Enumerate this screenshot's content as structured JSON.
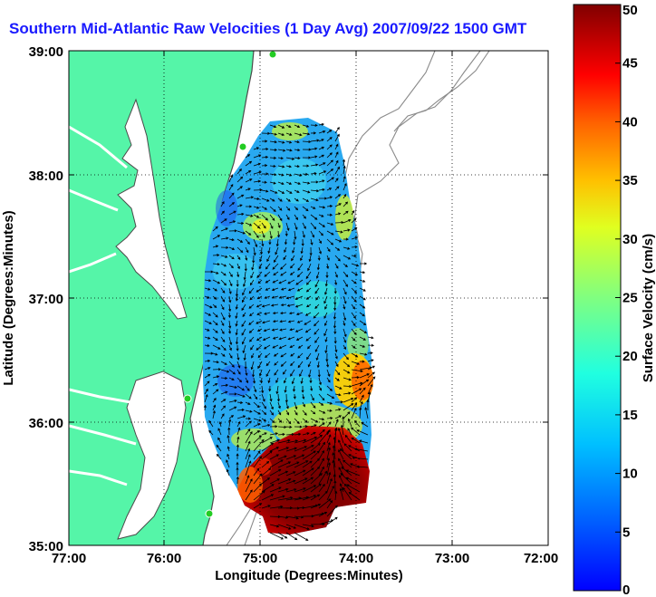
{
  "title": "Southern Mid-Atlantic Raw Velocities (1 Day Avg) 2007/09/22 1500 GMT",
  "axes": {
    "xlabel": "Longitude (Degrees:Minutes)",
    "ylabel": "Latitude (Degrees:Minutes)",
    "x_ticks": [
      "77:00",
      "76:00",
      "75:00",
      "74:00",
      "73:00",
      "72:00"
    ],
    "y_ticks": [
      "39:00",
      "38:00",
      "37:00",
      "36:00",
      "35:00"
    ]
  },
  "colorbar": {
    "label": "Surface Velocity (cm/s)",
    "ticks": [
      "50",
      "45",
      "40",
      "35",
      "30",
      "25",
      "20",
      "15",
      "10",
      "5",
      "0"
    ],
    "range": [
      0,
      50
    ],
    "colormap": "jet"
  },
  "colors": {
    "land": "#55f5a8",
    "title": "#1a1aff",
    "coastline": "#4a4a4a",
    "bathymetry": "#8a8a8a",
    "station": "#22cc22"
  },
  "map": {
    "lon_range": [
      -77,
      -72
    ],
    "lat_range": [
      35,
      39
    ],
    "grid": "dotted",
    "stations": [
      "station-1",
      "station-2",
      "station-3",
      "station-4"
    ]
  }
}
